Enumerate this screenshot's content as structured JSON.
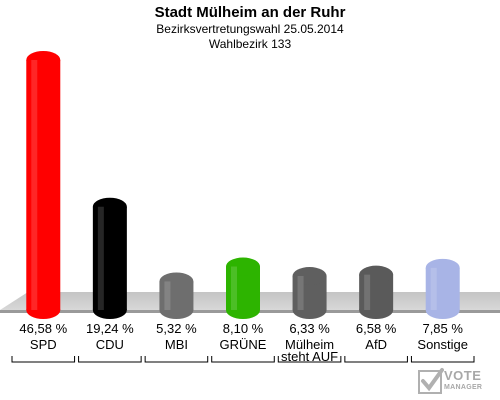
{
  "header": {
    "title": "Stadt Mülheim an der Ruhr",
    "subtitle": "Bezirksvertretungswahl 25.05.2014",
    "subtitle2": "Wahlbezirk 133"
  },
  "logo": {
    "line1": "VOTE",
    "line2": "MANAGER"
  },
  "chart_data": {
    "type": "bar",
    "title": "Stadt Mülheim an der Ruhr",
    "subtitle": "Bezirksvertretungswahl 25.05.2014 / Wahlbezirk 133",
    "categories": [
      "SPD",
      "CDU",
      "MBI",
      "GRÜNE",
      "Mülheim steht AUF",
      "AfD",
      "Sonstige"
    ],
    "category_labels": [
      [
        "SPD"
      ],
      [
        "CDU"
      ],
      [
        "MBI"
      ],
      [
        "GRÜNE"
      ],
      [
        "Mülheim",
        "steht AUF"
      ],
      [
        "AfD"
      ],
      [
        "Sonstige"
      ]
    ],
    "values": [
      46.58,
      19.24,
      5.32,
      8.1,
      6.33,
      6.58,
      7.85
    ],
    "value_labels": [
      "46,58 %",
      "19,24 %",
      "5,32 %",
      "8,10 %",
      "6,33 %",
      "6,58 %",
      "7,85 %"
    ],
    "colors": [
      "#ff0000",
      "#000000",
      "#6e6e6e",
      "#2db400",
      "#5f5f5f",
      "#5a5a5a",
      "#a8b4e6"
    ],
    "unit": "%",
    "grid": false,
    "legend": "none"
  }
}
